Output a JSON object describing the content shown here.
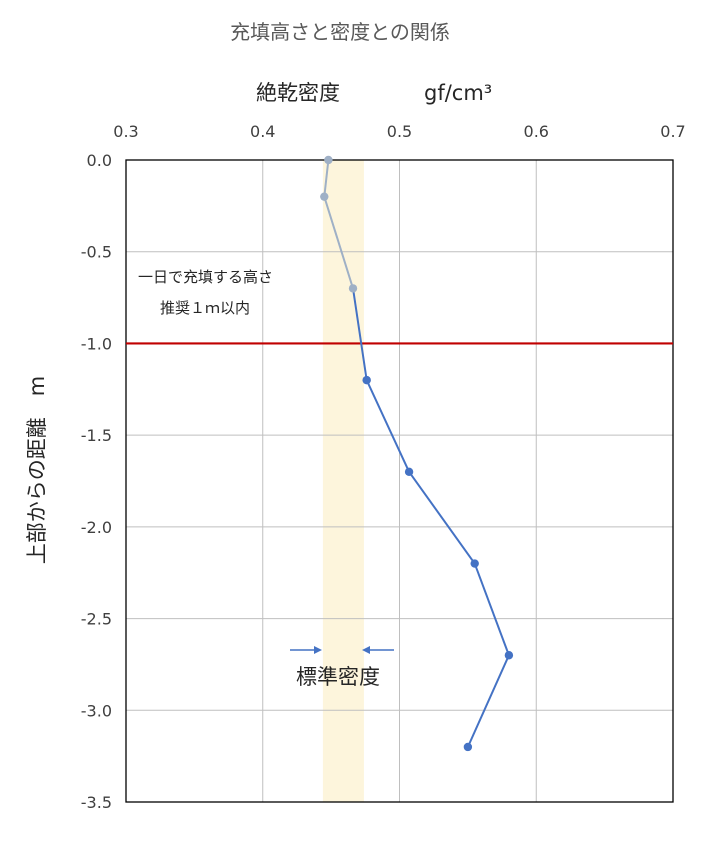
{
  "chart_data": {
    "type": "line",
    "title": "充填高さと密度との関係",
    "xlabel_main": "絶乾密度",
    "xlabel_unit": "gf/cm³",
    "ylabel": "上部からの距離　m",
    "xlim": [
      0.3,
      0.7
    ],
    "ylim": [
      -3.5,
      0.0
    ],
    "x_ticks": [
      "0.3",
      "0.4",
      "0.5",
      "0.6",
      "0.7"
    ],
    "y_ticks": [
      "0.0",
      "-0.5",
      "-1.0",
      "-1.5",
      "-2.0",
      "-2.5",
      "-3.0",
      "-3.5"
    ],
    "x_axis_position": "top",
    "grid": true,
    "series": [
      {
        "color_within_1m": "#9fb0c6",
        "color": "#4472c4",
        "points": [
          {
            "x": 0.448,
            "y": 0.0
          },
          {
            "x": 0.445,
            "y": -0.2
          },
          {
            "x": 0.466,
            "y": -0.7
          },
          {
            "x": 0.476,
            "y": -1.2
          },
          {
            "x": 0.507,
            "y": -1.7
          },
          {
            "x": 0.555,
            "y": -2.2
          },
          {
            "x": 0.58,
            "y": -2.7
          },
          {
            "x": 0.55,
            "y": -3.2
          }
        ]
      }
    ],
    "reference_line": {
      "y": -1.0,
      "color": "#c00000"
    },
    "standard_band": {
      "x_from": 0.444,
      "x_to": 0.474,
      "color": "#fdf5dc",
      "label": "標準密度"
    },
    "annotation_lines": [
      "一日で充填する高さ",
      "推奨１ｍ以内"
    ]
  }
}
